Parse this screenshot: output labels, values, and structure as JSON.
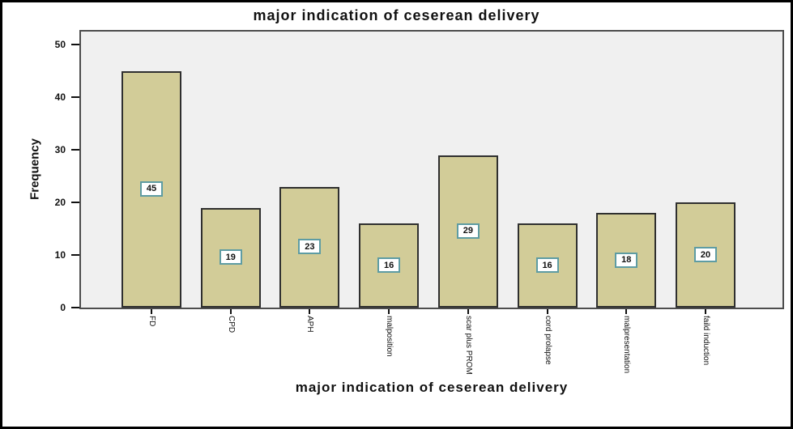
{
  "chart_data": {
    "type": "bar",
    "title": "major indication of ceserean delivery",
    "xlabel": "major indication of ceserean delivery",
    "ylabel": "Frequency",
    "categories": [
      "FD",
      "CPD",
      "APH",
      "malposition",
      "scar plus PROM",
      "cord prolapse",
      "malpresentation",
      "faild induction"
    ],
    "values": [
      45,
      19,
      23,
      16,
      29,
      16,
      18,
      20
    ],
    "yticks": [
      0,
      10,
      20,
      30,
      40,
      50
    ],
    "ylim": [
      0,
      53
    ],
    "grid": false,
    "legend_position": "none",
    "value_labels_shown": true,
    "colors": {
      "bar_fill": "#d2cc98",
      "bar_border": "#2f2f2f",
      "plot_bg": "#f0f0f0",
      "plot_border": "#4d4d4d",
      "value_label_bg": "#ffffff",
      "value_label_border": "#5e9ca3",
      "axis_text": "#111111",
      "frame_border": "#000000"
    }
  }
}
